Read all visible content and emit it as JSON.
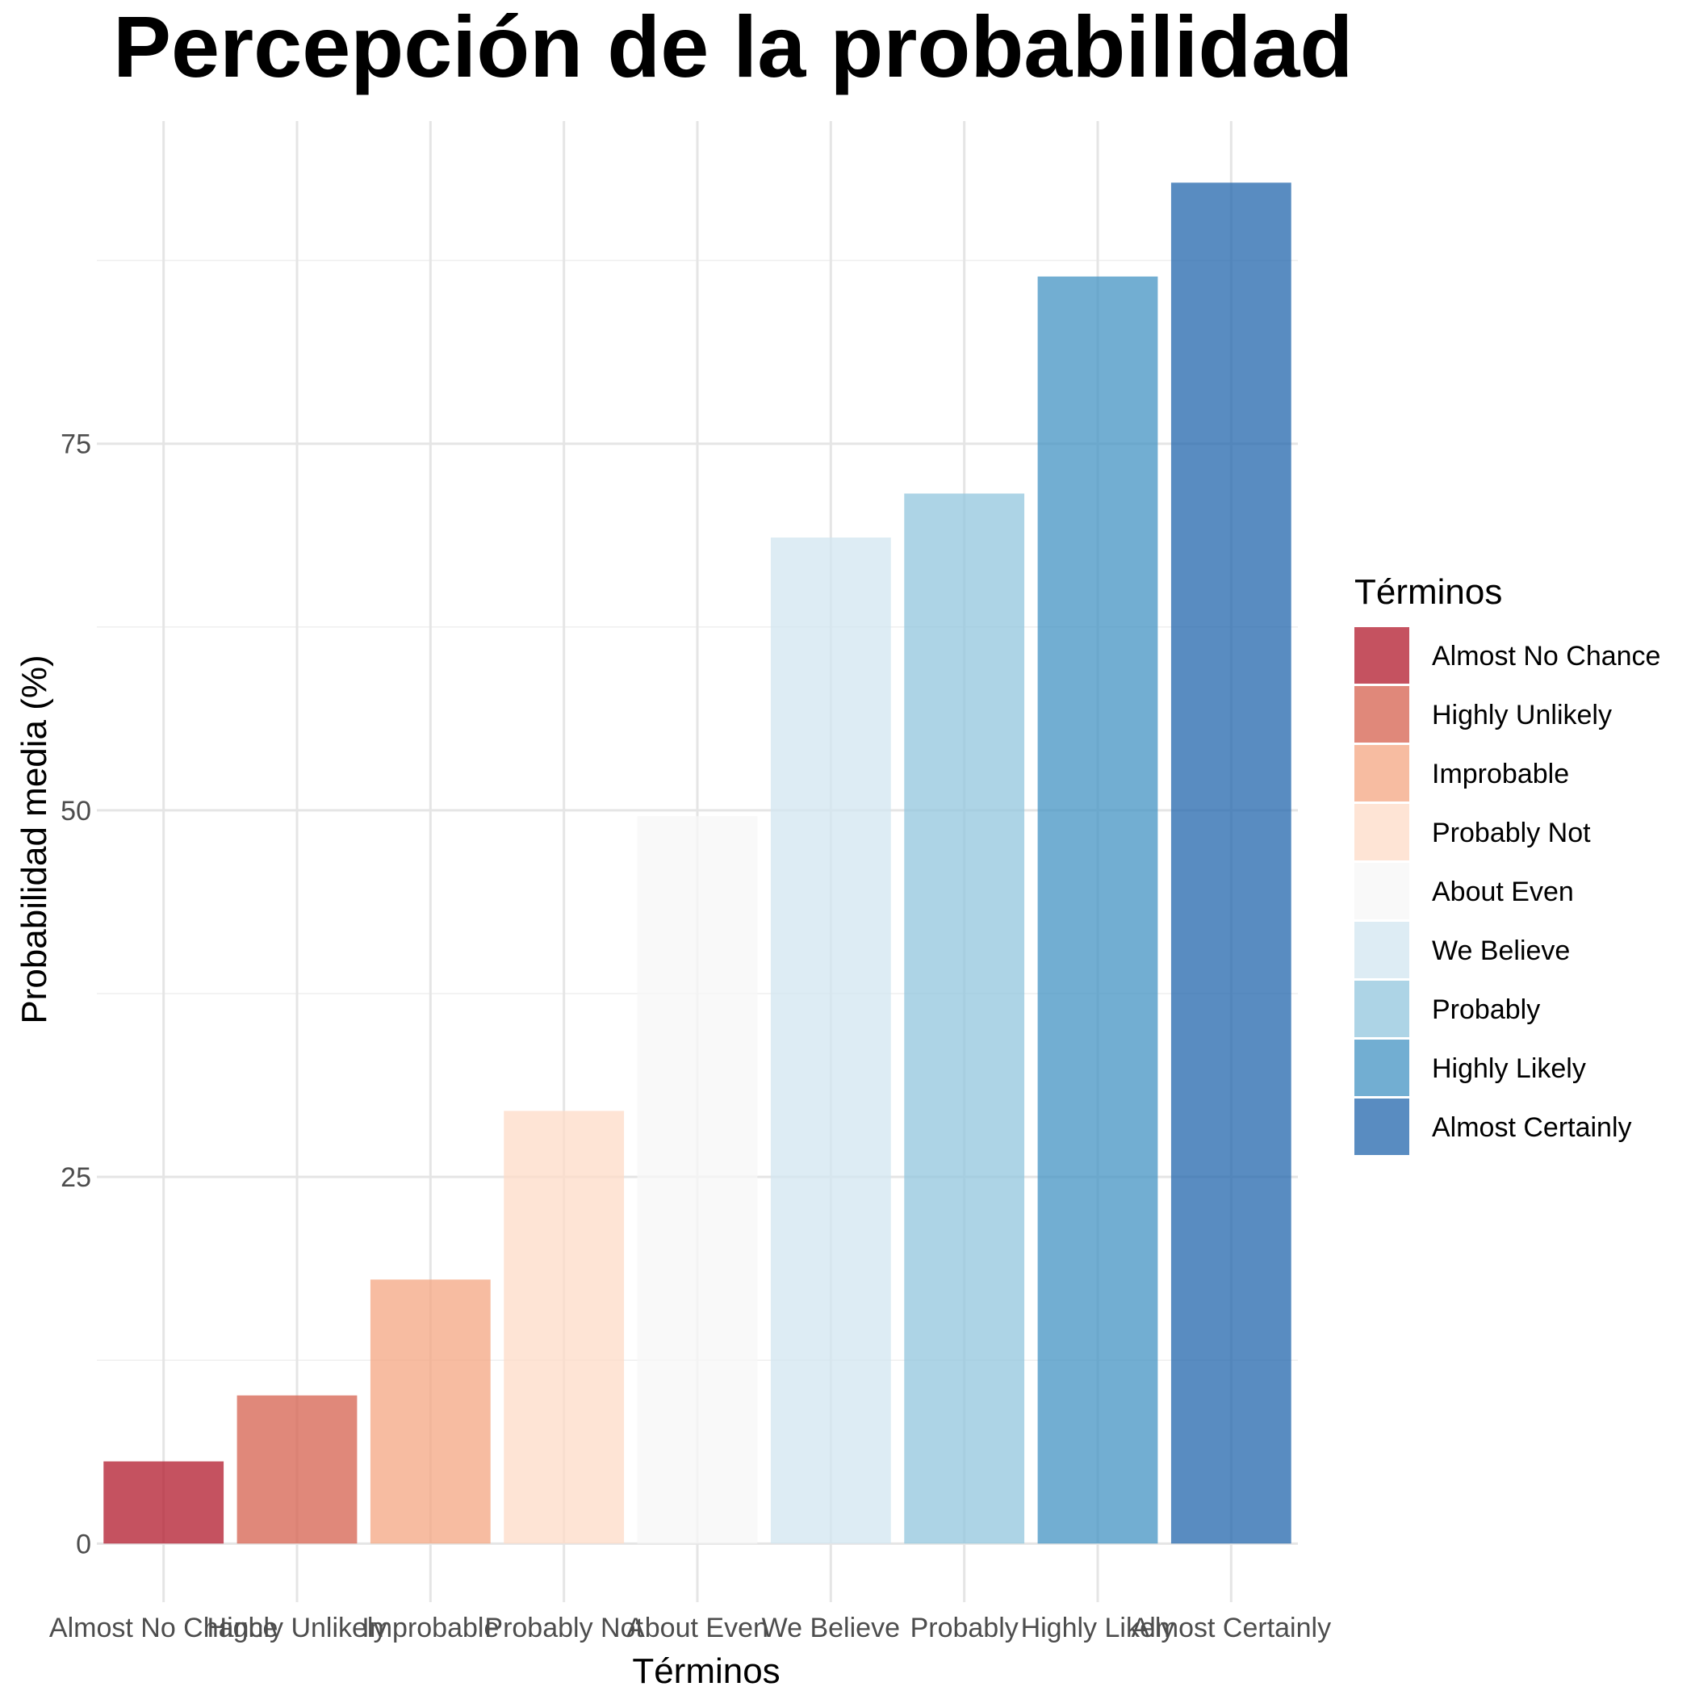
{
  "chart_data": {
    "type": "bar",
    "title": "Percepción de la probabilidad",
    "xlabel": "Términos",
    "ylabel": "Probabilidad media (%)",
    "categories": [
      "Almost No Chance",
      "Highly Unlikely",
      "Improbable",
      "Probably Not",
      "About Even",
      "We Believe",
      "Probably",
      "Highly Likely",
      "Almost Certainly"
    ],
    "values": [
      5.6,
      10.1,
      18.0,
      29.5,
      49.6,
      68.6,
      71.6,
      86.4,
      92.8
    ],
    "colors": [
      "#b2182b",
      "#d6604d",
      "#f4a582",
      "#fddbc7",
      "#f7f7f7",
      "#d1e5f0",
      "#92c5de",
      "#4393c3",
      "#2166ac"
    ],
    "bar_opacity": 0.75,
    "ylim": [
      -4,
      97
    ],
    "yticks": [
      0,
      25,
      50,
      75
    ],
    "grid": true,
    "legend": {
      "title": "Términos",
      "placement": "right",
      "items": [
        "Almost No Chance",
        "Highly Unlikely",
        "Improbable",
        "Probably Not",
        "About Even",
        "We Believe",
        "Probably",
        "Highly Likely",
        "Almost Certainly"
      ]
    }
  }
}
